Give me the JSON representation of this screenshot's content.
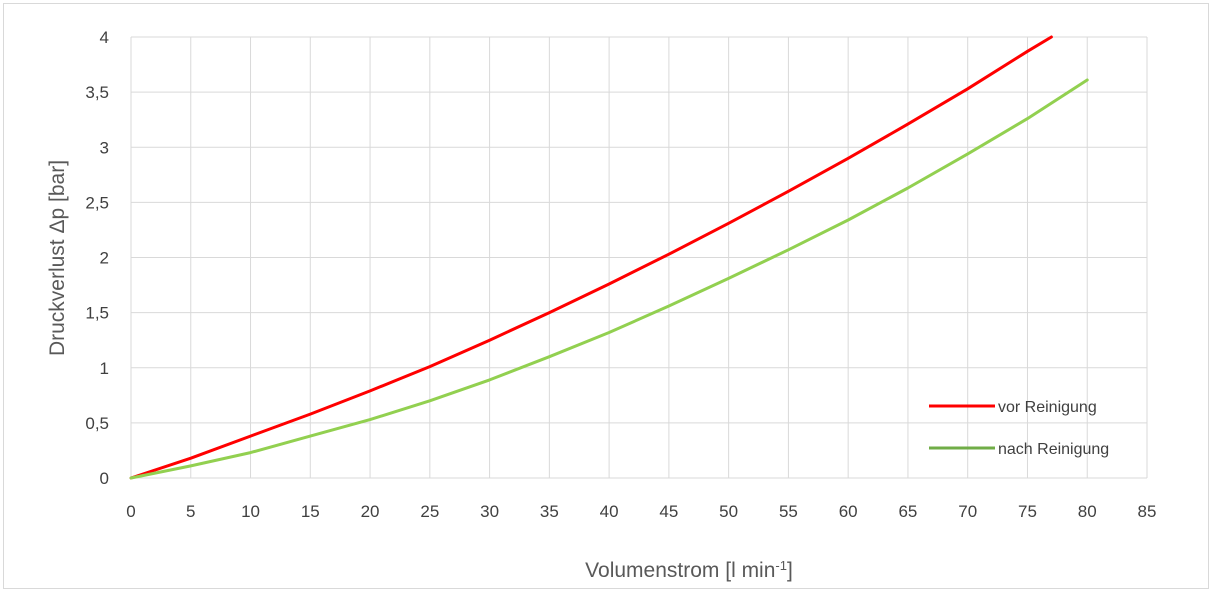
{
  "chart_data": {
    "type": "line",
    "title": "",
    "xlabel": "Volumenstrom [l min",
    "xlabel_superscript": "-1",
    "xlabel_suffix": "]",
    "ylabel": "Druckverlust Δp [bar]",
    "xlim": [
      0,
      85
    ],
    "ylim": [
      0,
      4
    ],
    "x_ticks": [
      "0",
      "5",
      "10",
      "15",
      "20",
      "25",
      "30",
      "35",
      "40",
      "45",
      "50",
      "55",
      "60",
      "65",
      "70",
      "75",
      "80",
      "85"
    ],
    "y_ticks": [
      "0",
      "0,5",
      "1",
      "1,5",
      "2",
      "2,5",
      "3",
      "3,5",
      "4"
    ],
    "grid": true,
    "legend_position": "bottom-right",
    "series": [
      {
        "name": "vor Reinigung",
        "color": "#ff0000",
        "x": [
          0,
          5,
          10,
          15,
          20,
          25,
          30,
          35,
          40,
          45,
          50,
          55,
          60,
          65,
          70,
          75,
          77
        ],
        "y": [
          0,
          0.18,
          0.38,
          0.58,
          0.79,
          1.01,
          1.25,
          1.5,
          1.76,
          2.03,
          2.31,
          2.6,
          2.9,
          3.21,
          3.53,
          3.87,
          4.0
        ]
      },
      {
        "name": "nach Reinigung",
        "color": "#92d050",
        "x": [
          0,
          5,
          10,
          15,
          20,
          25,
          30,
          35,
          40,
          45,
          50,
          55,
          60,
          65,
          70,
          75,
          80
        ],
        "y": [
          0,
          0.11,
          0.23,
          0.38,
          0.53,
          0.7,
          0.89,
          1.1,
          1.32,
          1.56,
          1.81,
          2.07,
          2.34,
          2.63,
          2.94,
          3.26,
          3.61
        ]
      }
    ]
  }
}
